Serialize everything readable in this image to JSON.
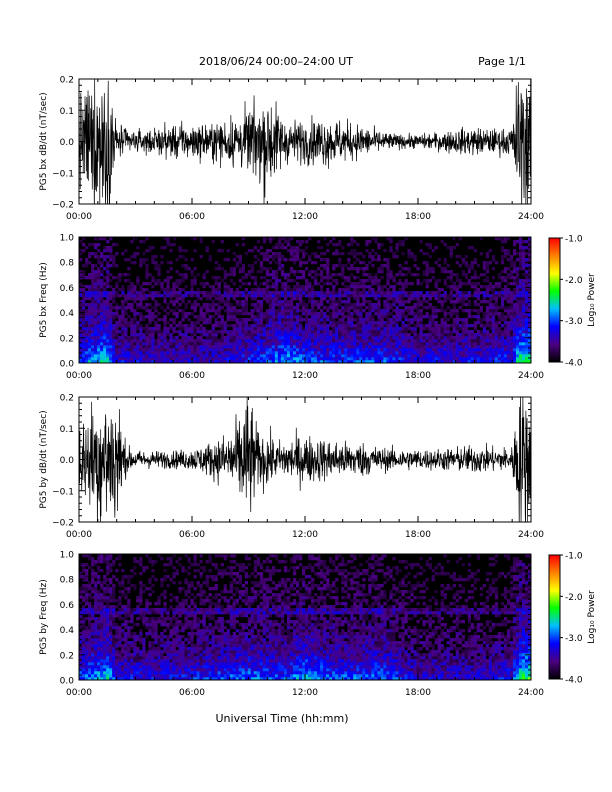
{
  "header": {
    "title": "2018/06/24  00:00–24:00 UT",
    "page": "Page 1/1"
  },
  "footer": {
    "xlabel": "Universal Time (hh:mm)"
  },
  "colorbar": {
    "label": "Log₁₀ Power",
    "ticks": [
      "-1.0",
      "-2.0",
      "-3.0",
      "-4.0"
    ],
    "range": [
      -4.0,
      -1.0
    ],
    "colors": [
      "#000000",
      "#4b0082",
      "#0000ff",
      "#00bfff",
      "#00ff00",
      "#ffff00",
      "#ff8000",
      "#ff0000"
    ]
  },
  "chart_data": [
    {
      "type": "line",
      "ylabel": "PG5 bx dB/dt (nT/sec)",
      "xlim": [
        0,
        24
      ],
      "ylim": [
        -0.2,
        0.2
      ],
      "xticks": [
        "00:00",
        "06:00",
        "12:00",
        "18:00",
        "24:00"
      ],
      "yticks": [
        "0.2",
        "0.1",
        "0.0",
        "−0.1",
        "−0.2"
      ],
      "amplitude_profile": [
        [
          0,
          0.13
        ],
        [
          0.5,
          0.16
        ],
        [
          1.0,
          0.2
        ],
        [
          1.5,
          0.22
        ],
        [
          2.0,
          0.05
        ],
        [
          3.0,
          0.03
        ],
        [
          4.0,
          0.035
        ],
        [
          5.0,
          0.05
        ],
        [
          6.0,
          0.05
        ],
        [
          7.0,
          0.05
        ],
        [
          8.0,
          0.07
        ],
        [
          9.0,
          0.09
        ],
        [
          9.5,
          0.11
        ],
        [
          10.0,
          0.15
        ],
        [
          10.5,
          0.1
        ],
        [
          11.0,
          0.06
        ],
        [
          12.0,
          0.06
        ],
        [
          13.0,
          0.07
        ],
        [
          14.0,
          0.06
        ],
        [
          15.0,
          0.045
        ],
        [
          16.0,
          0.03
        ],
        [
          17.0,
          0.02
        ],
        [
          18.0,
          0.02
        ],
        [
          19.0,
          0.025
        ],
        [
          20.0,
          0.035
        ],
        [
          21.0,
          0.04
        ],
        [
          22.0,
          0.035
        ],
        [
          23.0,
          0.04
        ],
        [
          23.3,
          0.2
        ],
        [
          24.0,
          0.2
        ]
      ],
      "color": "#000000"
    },
    {
      "type": "heatmap",
      "ylabel": "PG5 bx Freq (Hz)",
      "xlim": [
        0,
        24
      ],
      "ylim": [
        0.0,
        1.0
      ],
      "xticks": [
        "00:00",
        "06:00",
        "12:00",
        "18:00",
        "24:00"
      ],
      "yticks": [
        "1.0",
        "0.8",
        "0.6",
        "0.4",
        "0.2",
        "0.0"
      ],
      "value_range": [
        -4.0,
        -1.0
      ],
      "activity_profile": [
        [
          0,
          0.55
        ],
        [
          1.5,
          0.85
        ],
        [
          2.0,
          0.4
        ],
        [
          5.0,
          0.35
        ],
        [
          7.0,
          0.35
        ],
        [
          9.0,
          0.45
        ],
        [
          11.0,
          0.7
        ],
        [
          12.0,
          0.55
        ],
        [
          14.0,
          0.5
        ],
        [
          16.0,
          0.55
        ],
        [
          18.0,
          0.4
        ],
        [
          21.0,
          0.4
        ],
        [
          23.0,
          0.5
        ],
        [
          23.4,
          0.9
        ],
        [
          24.0,
          0.95
        ]
      ],
      "line_frequency": 0.55
    },
    {
      "type": "line",
      "ylabel": "PG5 by dB/dt (nT/sec)",
      "xlim": [
        0,
        24
      ],
      "ylim": [
        -0.2,
        0.2
      ],
      "xticks": [
        "00:00",
        "06:00",
        "12:00",
        "18:00",
        "24:00"
      ],
      "yticks": [
        "0.2",
        "0.1",
        "0.0",
        "−0.1",
        "−0.2"
      ],
      "amplitude_profile": [
        [
          0,
          0.1
        ],
        [
          0.5,
          0.14
        ],
        [
          1.0,
          0.2
        ],
        [
          1.5,
          0.2
        ],
        [
          2.0,
          0.2
        ],
        [
          2.5,
          0.04
        ],
        [
          3.0,
          0.025
        ],
        [
          5.0,
          0.025
        ],
        [
          6.0,
          0.03
        ],
        [
          7.0,
          0.05
        ],
        [
          8.0,
          0.08
        ],
        [
          8.5,
          0.12
        ],
        [
          9.0,
          0.2
        ],
        [
          9.5,
          0.08
        ],
        [
          10.0,
          0.08
        ],
        [
          10.5,
          0.05
        ],
        [
          11.0,
          0.06
        ],
        [
          12.0,
          0.07
        ],
        [
          13.0,
          0.06
        ],
        [
          14.0,
          0.05
        ],
        [
          15.0,
          0.05
        ],
        [
          16.0,
          0.035
        ],
        [
          17.0,
          0.03
        ],
        [
          18.0,
          0.03
        ],
        [
          19.0,
          0.03
        ],
        [
          20.0,
          0.035
        ],
        [
          21.0,
          0.04
        ],
        [
          22.0,
          0.035
        ],
        [
          23.0,
          0.035
        ],
        [
          23.3,
          0.2
        ],
        [
          24.0,
          0.2
        ]
      ],
      "color": "#000000"
    },
    {
      "type": "heatmap",
      "ylabel": "PG5 by Freq (Hz)",
      "xlim": [
        0,
        24
      ],
      "ylim": [
        0.0,
        1.0
      ],
      "xticks": [
        "00:00",
        "06:00",
        "12:00",
        "18:00",
        "24:00"
      ],
      "yticks": [
        "1.0",
        "0.8",
        "0.6",
        "0.4",
        "0.2",
        "0.0"
      ],
      "value_range": [
        -4.0,
        -1.0
      ],
      "activity_profile": [
        [
          0,
          0.55
        ],
        [
          1.5,
          0.8
        ],
        [
          2.0,
          0.45
        ],
        [
          4.0,
          0.4
        ],
        [
          6.0,
          0.45
        ],
        [
          8.0,
          0.55
        ],
        [
          9.0,
          0.6
        ],
        [
          11.0,
          0.55
        ],
        [
          12.0,
          0.7
        ],
        [
          13.5,
          0.55
        ],
        [
          15.0,
          0.55
        ],
        [
          16.0,
          0.6
        ],
        [
          18.0,
          0.35
        ],
        [
          21.0,
          0.35
        ],
        [
          23.0,
          0.45
        ],
        [
          23.4,
          0.9
        ],
        [
          24.0,
          0.95
        ]
      ],
      "line_frequency": 0.55
    }
  ]
}
